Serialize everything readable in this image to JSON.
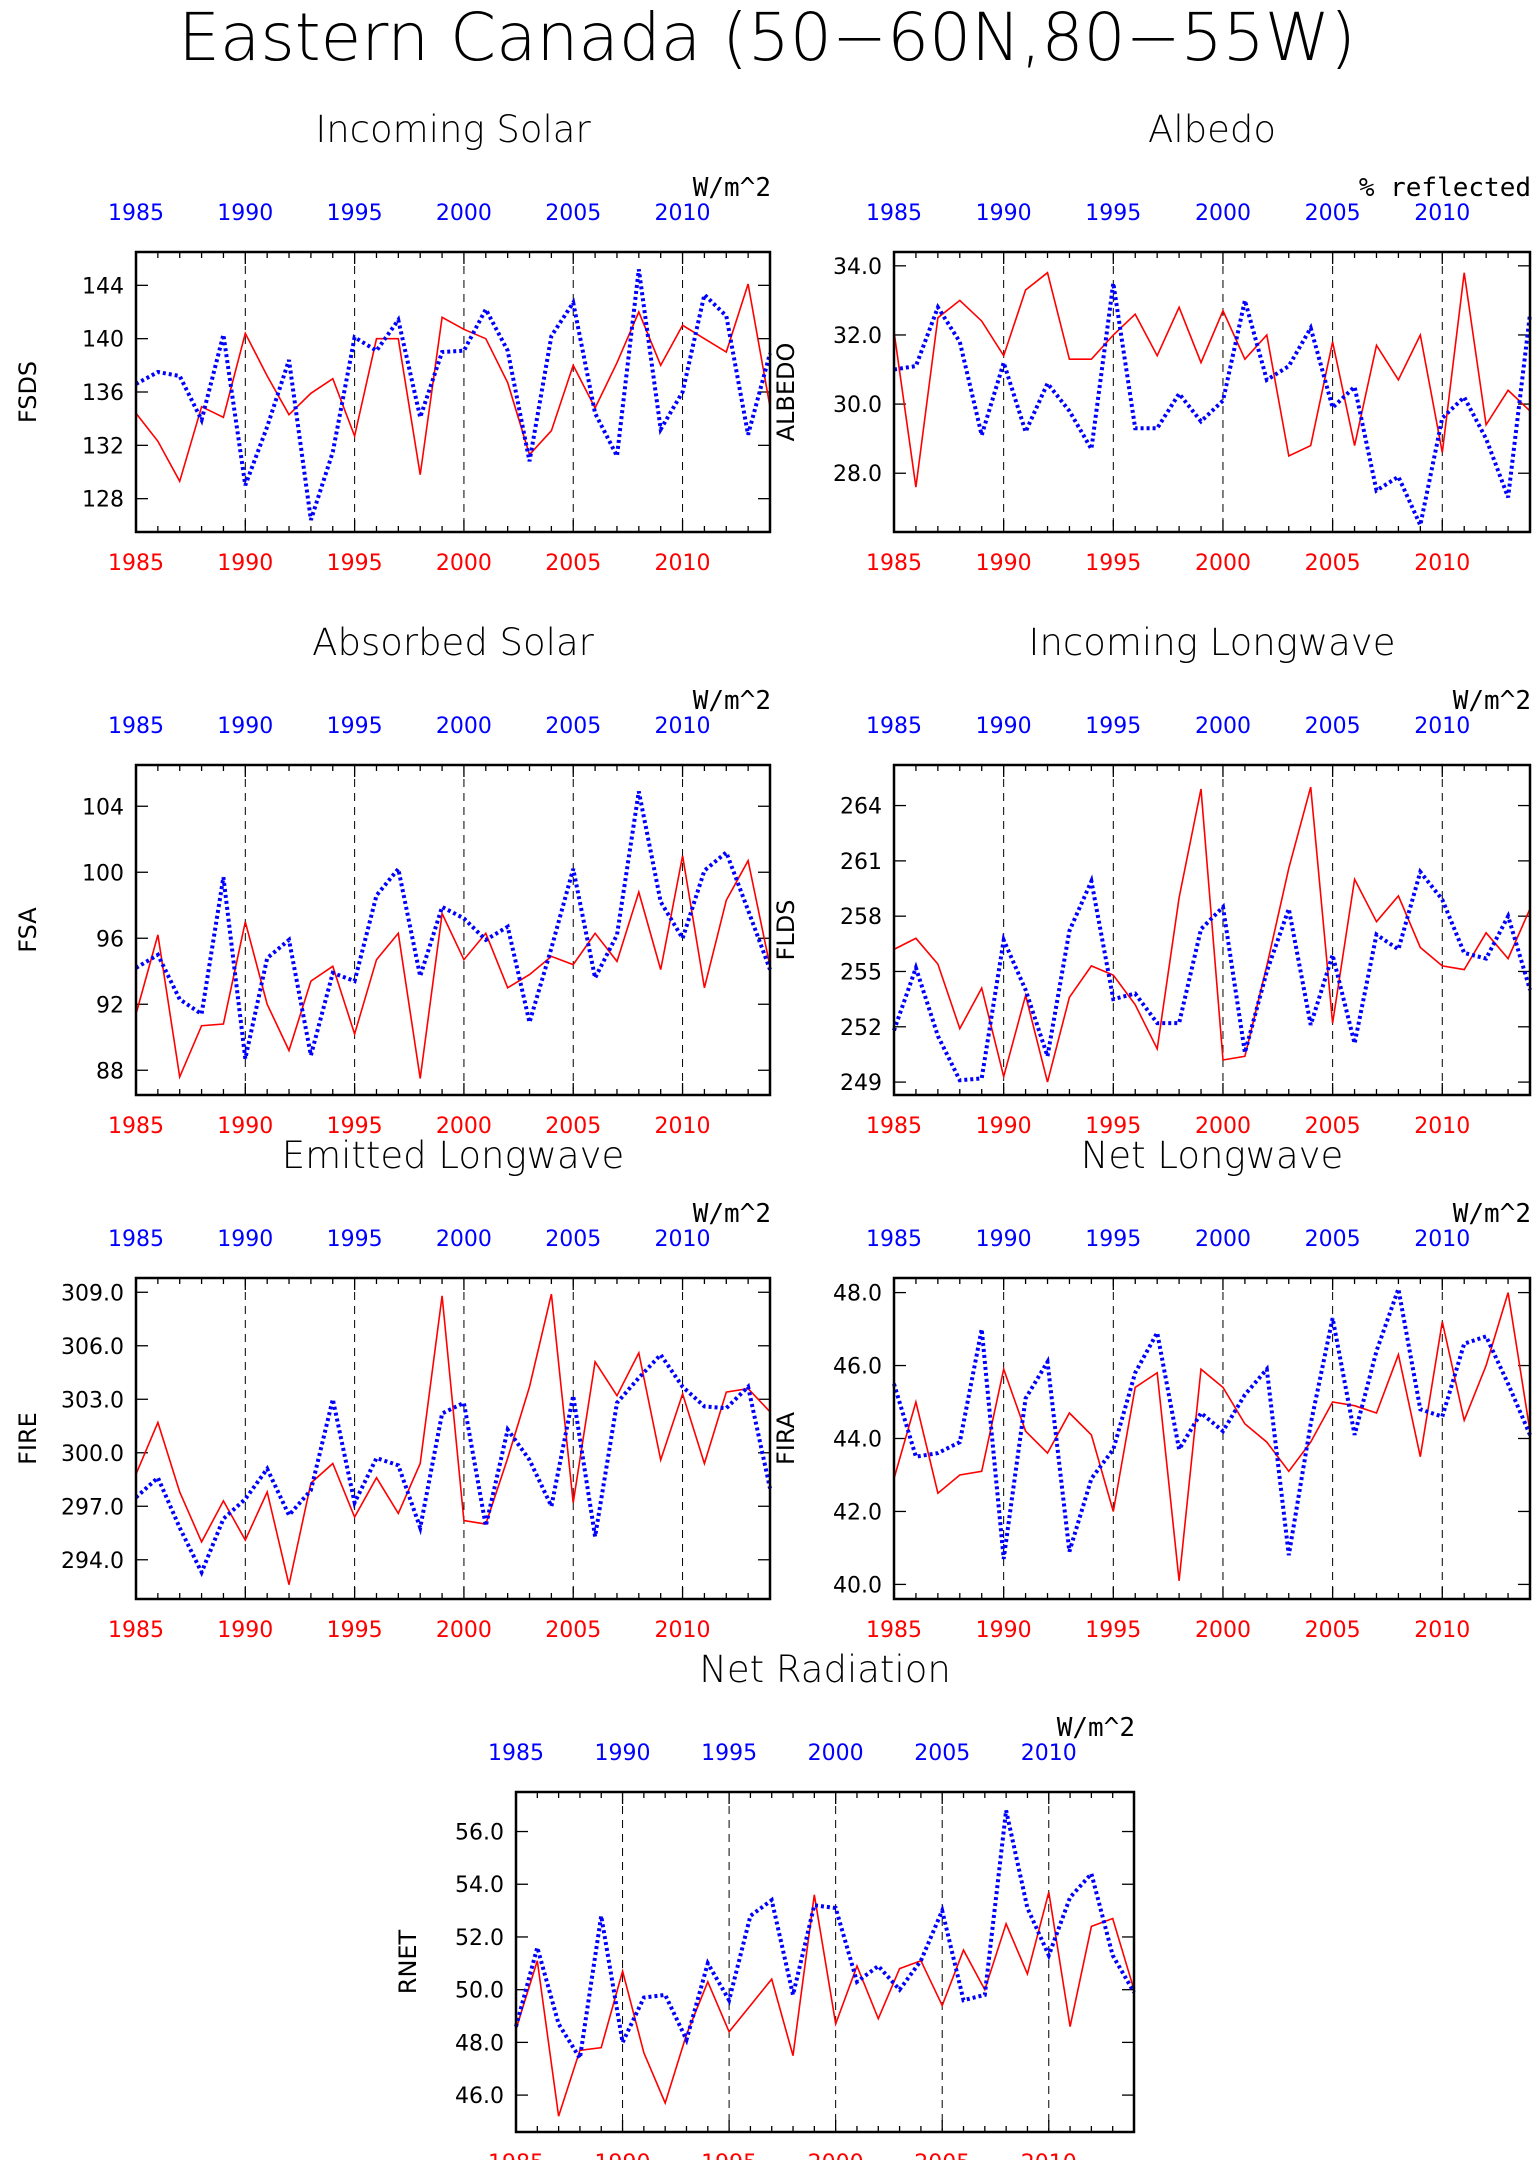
{
  "page_title": "Eastern Canada (50−60N,80−55W)",
  "colors": {
    "red_series": "#ff0000",
    "blue_series": "#0000ff",
    "axis": "#000000",
    "grid": "#000000"
  },
  "chart_data": [
    {
      "type": "line",
      "title": "Incoming Solar",
      "units": "W/m^2",
      "ylabel": "FSDS",
      "xlim": [
        1985,
        2014
      ],
      "ylim": [
        125.5,
        146.5
      ],
      "x_ticks": [
        1985,
        1990,
        1995,
        2000,
        2005,
        2010
      ],
      "y_ticks": [
        128,
        132,
        136,
        140,
        144
      ],
      "y_tick_labels": [
        "128",
        "132",
        "136",
        "140",
        "144"
      ],
      "grid_x": [
        1990,
        1995,
        2000,
        2005,
        2010
      ],
      "x": [
        1985,
        1986,
        1987,
        1988,
        1989,
        1990,
        1991,
        1992,
        1993,
        1994,
        1995,
        1996,
        1997,
        1998,
        1999,
        2000,
        2001,
        2002,
        2003,
        2004,
        2005,
        2006,
        2007,
        2008,
        2009,
        2010,
        2011,
        2012,
        2013,
        2014
      ],
      "series": [
        {
          "color": "red",
          "style": "solid",
          "values": [
            134.4,
            132.3,
            129.3,
            134.9,
            134.1,
            140.4,
            137.2,
            134.3,
            135.9,
            137.0,
            132.7,
            140.0,
            140.0,
            129.8,
            141.6,
            140.7,
            140.0,
            136.7,
            131.3,
            133.1,
            138.0,
            134.8,
            138.2,
            142.0,
            138.0,
            141.0,
            140.0,
            139.0,
            144.1,
            134.9
          ]
        },
        {
          "color": "blue",
          "style": "dotted",
          "values": [
            136.6,
            137.5,
            137.2,
            133.9,
            140.3,
            129.0,
            133.4,
            138.4,
            126.4,
            131.5,
            140.1,
            139.1,
            141.4,
            134.1,
            139.0,
            139.1,
            142.2,
            139.1,
            130.8,
            140.2,
            142.7,
            134.4,
            131.2,
            145.2,
            133.2,
            136.0,
            143.3,
            141.7,
            132.8,
            138.9
          ]
        }
      ]
    },
    {
      "type": "line",
      "title": "Albedo",
      "units": "% reflected",
      "ylabel": "ALBEDO",
      "xlim": [
        1985,
        2014
      ],
      "ylim": [
        26.3,
        34.4
      ],
      "x_ticks": [
        1985,
        1990,
        1995,
        2000,
        2005,
        2010
      ],
      "y_ticks": [
        28.0,
        30.0,
        32.0,
        34.0
      ],
      "y_tick_labels": [
        "28.0",
        "30.0",
        "32.0",
        "34.0"
      ],
      "grid_x": [
        1990,
        1995,
        2000,
        2005,
        2010
      ],
      "x": [
        1985,
        1986,
        1987,
        1988,
        1989,
        1990,
        1991,
        1992,
        1993,
        1994,
        1995,
        1996,
        1997,
        1998,
        1999,
        2000,
        2001,
        2002,
        2003,
        2004,
        2005,
        2006,
        2007,
        2008,
        2009,
        2010,
        2011,
        2012,
        2013,
        2014
      ],
      "series": [
        {
          "color": "red",
          "style": "solid",
          "values": [
            32.1,
            27.6,
            32.5,
            33.0,
            32.4,
            31.4,
            33.3,
            33.8,
            31.3,
            31.3,
            32.0,
            32.6,
            31.4,
            32.8,
            31.2,
            32.7,
            31.3,
            32.0,
            28.5,
            28.8,
            31.8,
            28.8,
            31.7,
            30.7,
            32.0,
            28.6,
            33.8,
            29.4,
            30.4,
            29.8
          ]
        },
        {
          "color": "blue",
          "style": "dotted",
          "values": [
            31.0,
            31.1,
            32.8,
            31.8,
            29.1,
            31.2,
            29.2,
            30.6,
            29.8,
            28.7,
            33.5,
            29.3,
            29.3,
            30.3,
            29.5,
            30.1,
            33.0,
            30.7,
            31.1,
            32.2,
            29.9,
            30.5,
            27.5,
            27.9,
            26.5,
            29.6,
            30.2,
            29.0,
            27.3,
            32.6
          ]
        }
      ]
    },
    {
      "type": "line",
      "title": "Absorbed Solar",
      "units": "W/m^2",
      "ylabel": "FSA",
      "xlim": [
        1985,
        2014
      ],
      "ylim": [
        86.5,
        106.5
      ],
      "x_ticks": [
        1985,
        1990,
        1995,
        2000,
        2005,
        2010
      ],
      "y_ticks": [
        88,
        92,
        96,
        100,
        104
      ],
      "y_tick_labels": [
        "88",
        "92",
        "96",
        "100",
        "104"
      ],
      "grid_x": [
        1990,
        1995,
        2000,
        2005,
        2010
      ],
      "x": [
        1985,
        1986,
        1987,
        1988,
        1989,
        1990,
        1991,
        1992,
        1993,
        1994,
        1995,
        1996,
        1997,
        1998,
        1999,
        2000,
        2001,
        2002,
        2003,
        2004,
        2005,
        2006,
        2007,
        2008,
        2009,
        2010,
        2011,
        2012,
        2013,
        2014
      ],
      "series": [
        {
          "color": "red",
          "style": "solid",
          "values": [
            91.4,
            96.2,
            87.6,
            90.7,
            90.8,
            97.0,
            92.0,
            89.2,
            93.4,
            94.3,
            90.2,
            94.7,
            96.3,
            87.5,
            97.5,
            94.7,
            96.3,
            93.0,
            93.8,
            94.9,
            94.4,
            96.3,
            94.6,
            98.8,
            94.1,
            101.0,
            93.0,
            98.3,
            100.7,
            94.3
          ]
        },
        {
          "color": "blue",
          "style": "dotted",
          "values": [
            94.2,
            95.0,
            92.3,
            91.4,
            99.7,
            88.7,
            94.8,
            95.9,
            88.9,
            93.9,
            93.4,
            98.6,
            100.2,
            93.7,
            97.9,
            97.2,
            95.9,
            96.7,
            90.9,
            95.4,
            100.2,
            93.6,
            96.2,
            104.9,
            98.2,
            96.0,
            100.1,
            101.2,
            97.7,
            94.1
          ]
        }
      ]
    },
    {
      "type": "line",
      "title": "Incoming Longwave",
      "units": "W/m^2",
      "ylabel": "FLDS",
      "xlim": [
        1985,
        2014
      ],
      "ylim": [
        248.3,
        266.2
      ],
      "x_ticks": [
        1985,
        1990,
        1995,
        2000,
        2005,
        2010
      ],
      "y_ticks": [
        249,
        252,
        255,
        258,
        261,
        264
      ],
      "y_tick_labels": [
        "249",
        "252",
        "255",
        "258",
        "261",
        "264"
      ],
      "grid_x": [
        1990,
        1995,
        2000,
        2005,
        2010
      ],
      "x": [
        1985,
        1986,
        1987,
        1988,
        1989,
        1990,
        1991,
        1992,
        1993,
        1994,
        1995,
        1996,
        1997,
        1998,
        1999,
        2000,
        2001,
        2002,
        2003,
        2004,
        2005,
        2006,
        2007,
        2008,
        2009,
        2010,
        2011,
        2012,
        2013,
        2014
      ],
      "series": [
        {
          "color": "red",
          "style": "solid",
          "values": [
            256.2,
            256.8,
            255.4,
            251.9,
            254.1,
            249.3,
            253.7,
            249.0,
            253.6,
            255.3,
            254.8,
            253.2,
            250.8,
            259.0,
            264.9,
            250.2,
            250.4,
            255.3,
            260.6,
            265.0,
            252.2,
            260.0,
            257.7,
            259.1,
            256.3,
            255.3,
            255.1,
            257.1,
            255.7,
            258.4
          ]
        },
        {
          "color": "blue",
          "style": "dotted",
          "values": [
            251.8,
            255.2,
            251.5,
            249.1,
            249.2,
            256.7,
            254.0,
            250.4,
            257.2,
            259.9,
            253.5,
            253.8,
            252.2,
            252.2,
            257.3,
            258.5,
            250.6,
            255.0,
            258.4,
            252.1,
            255.9,
            251.1,
            257.0,
            256.2,
            260.4,
            258.9,
            256.0,
            255.7,
            258.0,
            254.0
          ]
        }
      ]
    },
    {
      "type": "line",
      "title": "Emitted Longwave",
      "units": "W/m^2",
      "ylabel": "FIRE",
      "xlim": [
        1985,
        2014
      ],
      "ylim": [
        291.8,
        309.8
      ],
      "x_ticks": [
        1985,
        1990,
        1995,
        2000,
        2005,
        2010
      ],
      "y_ticks": [
        294.0,
        297.0,
        300.0,
        303.0,
        306.0,
        309.0
      ],
      "y_tick_labels": [
        "294.0",
        "297.0",
        "300.0",
        "303.0",
        "306.0",
        "309.0"
      ],
      "grid_x": [
        1990,
        1995,
        2000,
        2005,
        2010
      ],
      "x": [
        1985,
        1986,
        1987,
        1988,
        1989,
        1990,
        1991,
        1992,
        1993,
        1994,
        1995,
        1996,
        1997,
        1998,
        1999,
        2000,
        2001,
        2002,
        2003,
        2004,
        2005,
        2006,
        2007,
        2008,
        2009,
        2010,
        2011,
        2012,
        2013,
        2014
      ],
      "series": [
        {
          "color": "red",
          "style": "solid",
          "values": [
            298.8,
            301.7,
            297.8,
            295.0,
            297.3,
            295.1,
            297.8,
            292.6,
            298.3,
            299.4,
            296.4,
            298.6,
            296.6,
            299.4,
            308.8,
            296.2,
            296.0,
            299.7,
            303.7,
            308.9,
            297.2,
            305.1,
            303.2,
            305.6,
            299.6,
            303.3,
            299.4,
            303.4,
            303.6,
            302.3
          ]
        },
        {
          "color": "blue",
          "style": "dotted",
          "values": [
            297.5,
            298.6,
            295.8,
            293.3,
            296.3,
            297.4,
            299.1,
            296.5,
            297.9,
            303.0,
            297.2,
            299.7,
            299.3,
            295.8,
            302.2,
            302.8,
            295.9,
            301.3,
            299.6,
            297.0,
            303.2,
            295.3,
            302.8,
            304.2,
            305.5,
            303.7,
            302.6,
            302.5,
            303.7,
            298.0
          ]
        }
      ]
    },
    {
      "type": "line",
      "title": "Net Longwave",
      "units": "W/m^2",
      "ylabel": "FIRA",
      "xlim": [
        1985,
        2014
      ],
      "ylim": [
        39.6,
        48.4
      ],
      "x_ticks": [
        1985,
        1990,
        1995,
        2000,
        2005,
        2010
      ],
      "y_ticks": [
        40.0,
        42.0,
        44.0,
        46.0,
        48.0
      ],
      "y_tick_labels": [
        "40.0",
        "42.0",
        "44.0",
        "46.0",
        "48.0"
      ],
      "grid_x": [
        1990,
        1995,
        2000,
        2005,
        2010
      ],
      "x": [
        1985,
        1986,
        1987,
        1988,
        1989,
        1990,
        1991,
        1992,
        1993,
        1994,
        1995,
        1996,
        1997,
        1998,
        1999,
        2000,
        2001,
        2002,
        2003,
        2004,
        2005,
        2006,
        2007,
        2008,
        2009,
        2010,
        2011,
        2012,
        2013,
        2014
      ],
      "series": [
        {
          "color": "red",
          "style": "solid",
          "values": [
            42.9,
            45.0,
            42.5,
            43.0,
            43.1,
            45.9,
            44.2,
            43.6,
            44.7,
            44.1,
            42.0,
            45.4,
            45.8,
            40.1,
            45.9,
            45.4,
            44.4,
            43.9,
            43.1,
            43.9,
            45.0,
            44.9,
            44.7,
            46.3,
            43.5,
            47.2,
            44.5,
            46.0,
            48.0,
            44.2
          ]
        },
        {
          "color": "blue",
          "style": "dotted",
          "values": [
            45.5,
            43.5,
            43.6,
            43.9,
            47.0,
            40.7,
            45.1,
            46.1,
            40.9,
            42.9,
            43.7,
            45.8,
            46.9,
            43.7,
            44.7,
            44.2,
            45.2,
            45.9,
            40.8,
            44.4,
            47.3,
            44.1,
            46.4,
            48.1,
            44.8,
            44.6,
            46.6,
            46.8,
            45.5,
            44.1
          ]
        }
      ]
    },
    {
      "type": "line",
      "title": "Net Radiation",
      "units": "W/m^2",
      "ylabel": "RNET",
      "xlim": [
        1985,
        2014
      ],
      "ylim": [
        44.6,
        57.5
      ],
      "x_ticks": [
        1985,
        1990,
        1995,
        2000,
        2005,
        2010
      ],
      "y_ticks": [
        46.0,
        48.0,
        50.0,
        52.0,
        54.0,
        56.0
      ],
      "y_tick_labels": [
        "46.0",
        "48.0",
        "50.0",
        "52.0",
        "54.0",
        "56.0"
      ],
      "grid_x": [
        1990,
        1995,
        2000,
        2005,
        2010
      ],
      "x": [
        1985,
        1986,
        1987,
        1988,
        1989,
        1990,
        1991,
        1992,
        1993,
        1994,
        1995,
        1996,
        1997,
        1998,
        1999,
        2000,
        2001,
        2002,
        2003,
        2004,
        2005,
        2006,
        2007,
        2008,
        2009,
        2010,
        2011,
        2012,
        2013,
        2014
      ],
      "series": [
        {
          "color": "red",
          "style": "solid",
          "values": [
            48.5,
            51.1,
            45.2,
            47.7,
            47.8,
            50.7,
            47.6,
            45.7,
            48.3,
            50.3,
            48.4,
            49.4,
            50.4,
            47.5,
            53.6,
            48.7,
            50.9,
            48.9,
            50.8,
            51.1,
            49.4,
            51.5,
            50.0,
            52.5,
            50.6,
            53.7,
            48.6,
            52.4,
            52.7,
            50.0
          ]
        },
        {
          "color": "blue",
          "style": "dotted",
          "values": [
            48.6,
            51.6,
            48.7,
            47.4,
            52.8,
            48.0,
            49.7,
            49.8,
            48.1,
            51.0,
            49.6,
            52.8,
            53.4,
            49.8,
            53.2,
            53.1,
            50.3,
            50.9,
            50.0,
            51.1,
            53.0,
            49.6,
            49.8,
            56.8,
            53.1,
            51.3,
            53.5,
            54.4,
            51.3,
            49.9
          ]
        }
      ]
    }
  ]
}
